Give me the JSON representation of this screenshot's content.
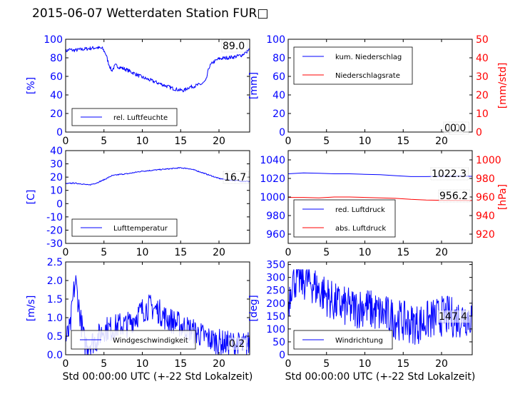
{
  "title": "2015-06-07 Wetterdaten Station FUR□",
  "colors": {
    "blue": "#0000ff",
    "red": "#ff0000",
    "black": "#000000"
  },
  "chart_data": [
    {
      "type": "line",
      "ylabel": "[%]",
      "xlim": [
        0,
        24
      ],
      "ylim": [
        0,
        100
      ],
      "xticks": [
        0,
        5,
        10,
        15,
        20
      ],
      "yticks": [
        0,
        20,
        40,
        60,
        80,
        100
      ],
      "legend_loc": "lower-left",
      "end_label": "89.0",
      "series": [
        {
          "name": "rel. Luftfeuchte",
          "axis": "left",
          "color": "#0000ff",
          "x": [
            0,
            0.5,
            1,
            2,
            3,
            4,
            4.8,
            5.2,
            5.6,
            6,
            6.5,
            7,
            8,
            9,
            10,
            11,
            12,
            13,
            14,
            15,
            15.5,
            16,
            17,
            17.8,
            18.3,
            18.7,
            19.2,
            20,
            21,
            22,
            23,
            24
          ],
          "y": [
            87,
            89,
            88,
            89,
            90,
            91,
            90,
            85,
            74,
            66,
            72,
            70,
            67,
            63,
            59,
            56,
            53,
            50,
            47,
            45,
            45,
            48,
            50,
            52,
            55,
            70,
            75,
            79,
            80,
            81,
            83,
            89
          ],
          "noise": 2
        }
      ]
    },
    {
      "type": "line",
      "ylabel": "[mm]",
      "ylabel_right": "[mm/std]",
      "xlim": [
        0,
        24
      ],
      "ylim": [
        0,
        100
      ],
      "ylim_right": [
        0,
        50
      ],
      "xticks": [
        0,
        5,
        10,
        15,
        20
      ],
      "yticks": [
        0,
        20,
        40,
        60,
        80,
        100
      ],
      "yticks_right": [
        0,
        10,
        20,
        30,
        40,
        50
      ],
      "legend_loc": "upper-left",
      "end_label": "0.0",
      "end_label2": "0.0",
      "series": [
        {
          "name": "kum. Niederschlag",
          "axis": "left",
          "color": "#0000ff",
          "x": [
            0,
            24
          ],
          "y": [
            0,
            0
          ],
          "noise": 0
        },
        {
          "name": "Niederschlagsrate",
          "axis": "right",
          "color": "#ff0000",
          "x": [
            0,
            24
          ],
          "y": [
            0,
            0
          ],
          "noise": 0
        }
      ]
    },
    {
      "type": "line",
      "ylabel": "[C]",
      "xlim": [
        0,
        24
      ],
      "ylim": [
        -30,
        40
      ],
      "xticks": [
        0,
        5,
        10,
        15,
        20
      ],
      "yticks": [
        -30,
        -20,
        -10,
        0,
        10,
        20,
        30,
        40
      ],
      "legend_loc": "lower-left",
      "end_label": "16.7",
      "series": [
        {
          "name": "Lufttemperatur",
          "axis": "left",
          "color": "#0000ff",
          "x": [
            0,
            1,
            2,
            3,
            4,
            5,
            6,
            7,
            8,
            9,
            10,
            11,
            12,
            13,
            14,
            15,
            16,
            17,
            18,
            19,
            20,
            21,
            22,
            23,
            24
          ],
          "y": [
            15,
            15.5,
            15,
            14,
            15.5,
            18,
            21,
            22,
            22.5,
            23.5,
            24.5,
            25,
            25.5,
            26,
            26.5,
            27,
            26.5,
            25,
            23,
            21,
            19,
            18,
            17.5,
            17,
            16.7
          ],
          "noise": 0.4
        }
      ]
    },
    {
      "type": "line",
      "ylabel_right": "[hPa]",
      "xlim": [
        0,
        24
      ],
      "ylim": [
        950,
        1050
      ],
      "ylim_right": [
        910,
        1010
      ],
      "xticks": [
        0,
        5,
        10,
        15,
        20
      ],
      "yticks": [
        960,
        980,
        1000,
        1020,
        1040
      ],
      "yticks_right": [
        920,
        940,
        960,
        980,
        1000
      ],
      "legend_loc": "lower-left",
      "end_label": "1022.3",
      "end_label2": "956.2",
      "series": [
        {
          "name": "red. Luftdruck",
          "axis": "left",
          "color": "#0000ff",
          "x": [
            0,
            2,
            4,
            6,
            8,
            10,
            12,
            14,
            16,
            18,
            20,
            22,
            24
          ],
          "y": [
            1025,
            1026,
            1025.5,
            1025,
            1025,
            1024.5,
            1024,
            1023,
            1022,
            1022,
            1022.3,
            1022.5,
            1022.3
          ],
          "noise": 0
        },
        {
          "name": "abs. Luftdruck",
          "axis": "right",
          "color": "#ff0000",
          "x": [
            0,
            2,
            4,
            6,
            8,
            10,
            12,
            14,
            16,
            18,
            20,
            22,
            24
          ],
          "y": [
            959.5,
            959.5,
            959,
            960,
            960,
            959.5,
            959,
            958.5,
            957.5,
            956.8,
            956.5,
            956.3,
            956.2
          ],
          "noise": 0
        }
      ]
    },
    {
      "type": "line",
      "ylabel": "[m/s]",
      "xlabel": "Std 00:00:00 UTC (+-22 Std Lokalzeit)",
      "xlim": [
        0,
        24
      ],
      "ylim": [
        0,
        2.5
      ],
      "xticks": [
        0,
        5,
        10,
        15,
        20
      ],
      "yticks": [
        0.0,
        0.5,
        1.0,
        1.5,
        2.0,
        2.5
      ],
      "legend_loc": "lower-center",
      "end_label": "0.2",
      "series": [
        {
          "name": "Windgeschwindigkeit",
          "axis": "left",
          "color": "#0000ff",
          "x": [
            0,
            0.6,
            1,
            1.3,
            1.6,
            2,
            2.5,
            3,
            4,
            5,
            6,
            7,
            8,
            9,
            10,
            11,
            12,
            13,
            14,
            15,
            16,
            17,
            18,
            19,
            20,
            21,
            22,
            23,
            24
          ],
          "y": [
            0.4,
            0.7,
            1.6,
            2.0,
            1.5,
            0.9,
            0.3,
            0.3,
            0.4,
            0.7,
            0.7,
            0.8,
            0.8,
            1.0,
            1.2,
            1.3,
            1.2,
            1.0,
            0.9,
            0.8,
            0.7,
            0.6,
            0.5,
            0.4,
            0.35,
            0.3,
            0.3,
            0.25,
            0.3
          ],
          "noise": 0.35
        }
      ]
    },
    {
      "type": "line",
      "ylabel": "[deg]",
      "xlabel": "Std 00:00:00 UTC (+-22 Std Lokalzeit)",
      "xlim": [
        0,
        24
      ],
      "ylim": [
        0,
        360
      ],
      "xticks": [
        0,
        5,
        10,
        15,
        20
      ],
      "yticks": [
        0,
        50,
        100,
        150,
        200,
        250,
        300,
        350
      ],
      "legend_loc": "lower-center",
      "end_label": "147.4",
      "series": [
        {
          "name": "Windrichtung",
          "axis": "left",
          "color": "#0000ff",
          "x": [
            0,
            0.5,
            1,
            2,
            3,
            4,
            5,
            6,
            7,
            8,
            9,
            10,
            11,
            12,
            13,
            14,
            15,
            16,
            17,
            18,
            19,
            20,
            21,
            22,
            23,
            24
          ],
          "y": [
            200,
            290,
            295,
            290,
            280,
            250,
            230,
            200,
            190,
            180,
            180,
            190,
            170,
            160,
            150,
            140,
            130,
            120,
            120,
            130,
            140,
            150,
            150,
            140,
            150,
            147
          ],
          "noise": 80
        }
      ]
    }
  ]
}
